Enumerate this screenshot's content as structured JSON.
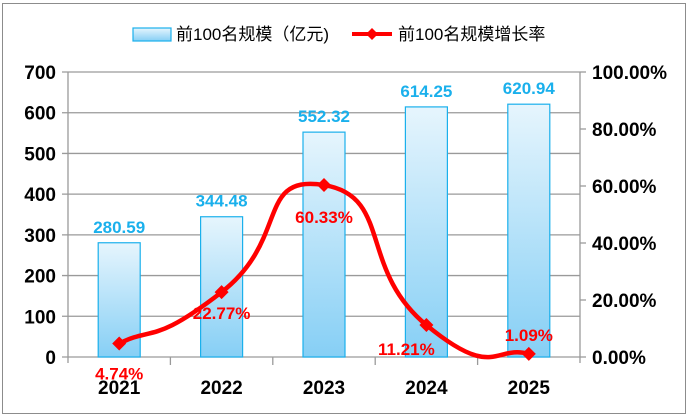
{
  "chart_data": {
    "type": "bar+line",
    "categories": [
      "2021",
      "2022",
      "2023",
      "2024",
      "2025"
    ],
    "series": [
      {
        "name": "前100名规模（亿元)",
        "type": "bar",
        "axis": "left",
        "values": [
          280.59,
          344.48,
          552.32,
          614.25,
          620.94
        ],
        "labels": [
          "280.59",
          "344.48",
          "552.32",
          "614.25",
          "620.94"
        ],
        "color": "#9fd9f7"
      },
      {
        "name": "前100名规模增长率",
        "type": "line",
        "axis": "right",
        "values": [
          4.74,
          22.77,
          60.33,
          11.21,
          1.09
        ],
        "labels": [
          "4.74%",
          "22.77%",
          "60.33%",
          "11.21%",
          "1.09%"
        ],
        "color": "#ff0000"
      }
    ],
    "left_axis": {
      "ylim": [
        0,
        700
      ],
      "ticks": [
        "0",
        "100",
        "200",
        "300",
        "400",
        "500",
        "600",
        "700"
      ]
    },
    "right_axis": {
      "ylim": [
        0,
        100
      ],
      "ticks": [
        "0.00%",
        "20.00%",
        "40.00%",
        "60.00%",
        "80.00%",
        "100.00%"
      ]
    },
    "legend": "top",
    "grid": true
  }
}
